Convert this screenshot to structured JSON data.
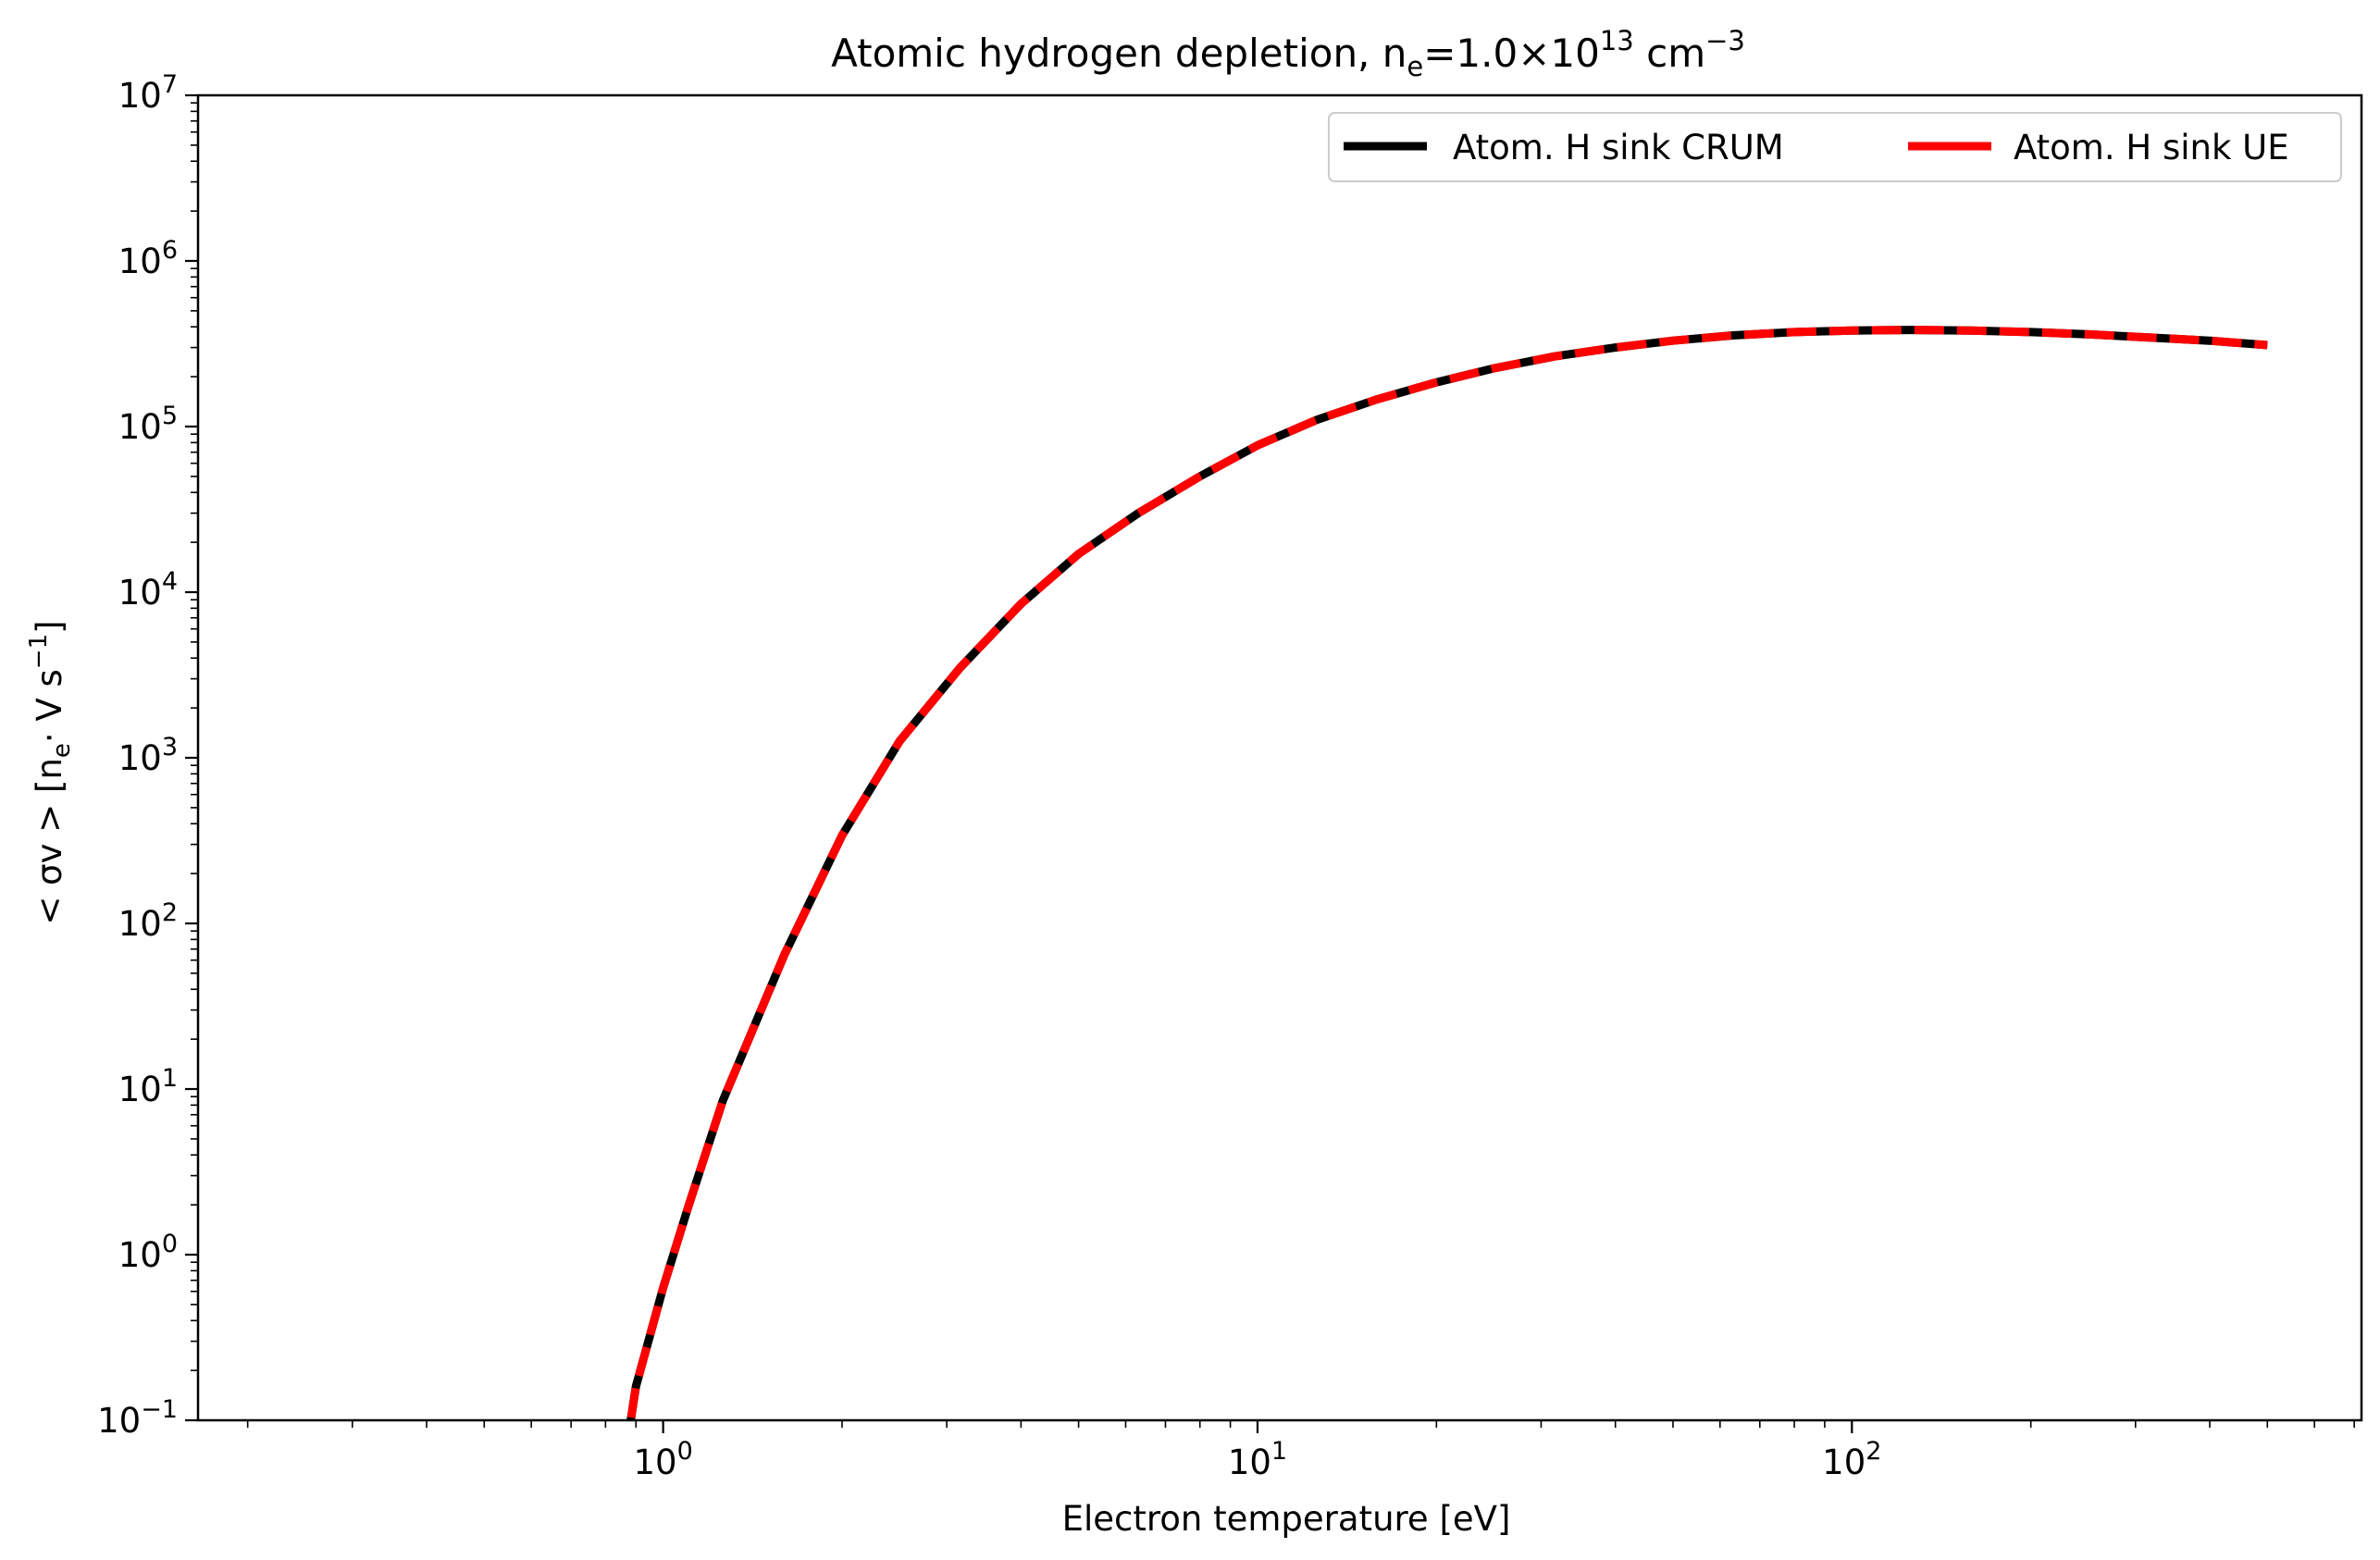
{
  "chart_data": {
    "type": "line",
    "title": {
      "main": "Atomic hydrogen depletion, n",
      "main_sub": "e",
      "rest": "=1.0×10",
      "rest_sup": "13",
      "unit": " cm",
      "unit_sup": "−3"
    },
    "xlabel": "Electron temperature [eV]",
    "ylabel": {
      "part1": "< σv >  [n",
      "part1_sub": "e",
      "part2": "· V   s",
      "part2_sup": "−1",
      "part3": "]"
    },
    "xscale": "log",
    "yscale": "log",
    "xlim": [
      0.165,
      720
    ],
    "ylim": [
      0.1,
      10000000
    ],
    "x_ticks": [
      {
        "base": "10",
        "exp": "0",
        "value": 1
      },
      {
        "base": "10",
        "exp": "1",
        "value": 10
      },
      {
        "base": "10",
        "exp": "2",
        "value": 100
      }
    ],
    "y_ticks": [
      {
        "base": "10",
        "exp": "−1",
        "value": 0.1
      },
      {
        "base": "10",
        "exp": "0",
        "value": 1
      },
      {
        "base": "10",
        "exp": "1",
        "value": 10
      },
      {
        "base": "10",
        "exp": "2",
        "value": 100
      },
      {
        "base": "10",
        "exp": "3",
        "value": 1000
      },
      {
        "base": "10",
        "exp": "4",
        "value": 10000
      },
      {
        "base": "10",
        "exp": "5",
        "value": 100000
      },
      {
        "base": "10",
        "exp": "6",
        "value": 1000000
      },
      {
        "base": "10",
        "exp": "7",
        "value": 10000000
      }
    ],
    "grid": false,
    "legend_position": "top-right",
    "x": [
      0.8,
      0.9,
      1.0,
      1.1,
      1.26,
      1.6,
      2.0,
      2.5,
      3.16,
      4.0,
      5.0,
      6.3,
      8.0,
      10,
      12.6,
      15.8,
      20,
      25,
      31.6,
      40,
      50,
      63,
      80,
      100,
      126,
      158,
      200,
      251,
      316,
      400,
      500
    ],
    "series": [
      {
        "name": "Atom. H sink CRUM",
        "color": "#000000",
        "style": "solid",
        "values": [
          0.01,
          0.16,
          0.63,
          1.9,
          8.5,
          65,
          340,
          1260,
          3500,
          8500,
          17000,
          30000,
          50000,
          77000,
          110000,
          145000,
          185000,
          225000,
          265000,
          300000,
          330000,
          355000,
          372000,
          380000,
          383000,
          380000,
          372000,
          360000,
          345000,
          330000,
          310000
        ]
      },
      {
        "name": "Atom. H sink UE",
        "color": "#ff0000",
        "style": "dashed",
        "values": [
          0.01,
          0.16,
          0.63,
          1.9,
          8.5,
          65,
          340,
          1260,
          3500,
          8500,
          17000,
          30000,
          50000,
          77000,
          110000,
          145000,
          185000,
          225000,
          265000,
          300000,
          330000,
          355000,
          372000,
          380000,
          383000,
          380000,
          372000,
          360000,
          345000,
          330000,
          310000
        ]
      }
    ]
  }
}
